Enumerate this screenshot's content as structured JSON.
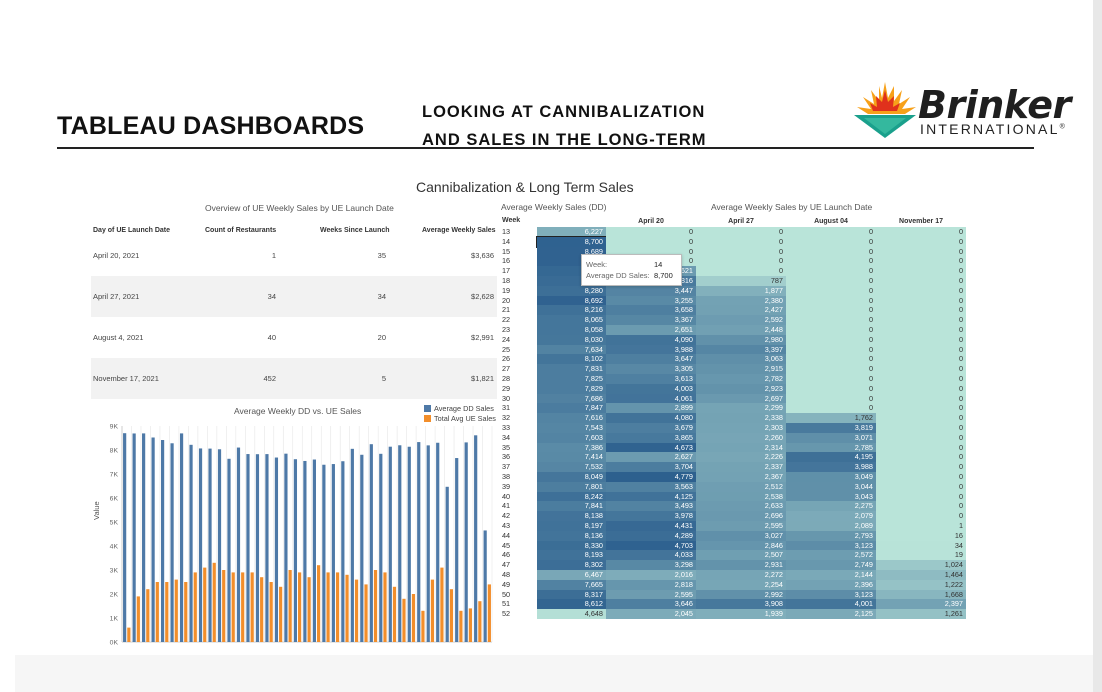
{
  "header": {
    "title": "TABLEAU DASHBOARDS",
    "subtitle_line1": "LOOKING AT CANNIBALIZATION",
    "subtitle_line2": "AND SALES IN THE LONG-TERM"
  },
  "logo": {
    "word": "Brinker",
    "sub": "INTERNATIONAL",
    "reg": "®"
  },
  "dashboard": {
    "title": "Cannibalization & Long Term Sales",
    "overview": {
      "title": "Overview of UE Weekly Sales by UE Launch Date",
      "columns": [
        "Day of UE Launch Date",
        "Count of Restaurants",
        "Weeks Since Launch",
        "Average Weekly Sales"
      ],
      "rows": [
        [
          "April 20, 2021",
          "1",
          "35",
          "$3,636"
        ],
        [
          "April 27, 2021",
          "34",
          "34",
          "$2,628"
        ],
        [
          "August 4, 2021",
          "40",
          "20",
          "$2,991"
        ],
        [
          "November 17, 2021",
          "452",
          "5",
          "$1,821"
        ]
      ]
    },
    "dd_sales": {
      "title": "Average Weekly Sales (DD)",
      "week_header": "Week",
      "weeks": [
        "13",
        "14",
        "15",
        "16",
        "17",
        "18",
        "19",
        "20",
        "21",
        "22",
        "23",
        "24",
        "25",
        "26",
        "27",
        "28",
        "29",
        "30",
        "31",
        "32",
        "33",
        "34",
        "35",
        "36",
        "37",
        "38",
        "39",
        "40",
        "41",
        "42",
        "43",
        "44",
        "45",
        "46",
        "47",
        "48",
        "49",
        "50",
        "51",
        "52"
      ],
      "values": [
        "6,227",
        "8,700",
        "8,689",
        "8,692",
        "8,521",
        "8,416",
        "8,280",
        "8,692",
        "8,216",
        "8,065",
        "8,058",
        "8,030",
        "7,634",
        "8,102",
        "7,831",
        "7,825",
        "7,829",
        "7,686",
        "7,847",
        "7,616",
        "7,543",
        "7,603",
        "7,386",
        "7,414",
        "7,532",
        "8,049",
        "7,801",
        "8,242",
        "7,841",
        "8,138",
        "8,197",
        "8,136",
        "8,330",
        "8,193",
        "8,302",
        "6,467",
        "7,665",
        "8,317",
        "8,612",
        "4,648"
      ]
    },
    "ue_sales": {
      "title": "Average Weekly Sales by UE Launch Date",
      "columns": [
        "April 20",
        "April 27",
        "August 04",
        "November 17"
      ],
      "rows": [
        [
          "0",
          "0",
          "0",
          "0"
        ],
        [
          "0",
          "0",
          "0",
          "0"
        ],
        [
          "0",
          "0",
          "0",
          "0"
        ],
        [
          "0",
          "0",
          "0",
          "0"
        ],
        [
          "2,621",
          "0",
          "0",
          "0"
        ],
        [
          "3,816",
          "787",
          "0",
          "0"
        ],
        [
          "3,447",
          "1,877",
          "0",
          "0"
        ],
        [
          "3,255",
          "2,380",
          "0",
          "0"
        ],
        [
          "3,658",
          "2,427",
          "0",
          "0"
        ],
        [
          "3,367",
          "2,592",
          "0",
          "0"
        ],
        [
          "2,651",
          "2,448",
          "0",
          "0"
        ],
        [
          "4,090",
          "2,980",
          "0",
          "0"
        ],
        [
          "3,988",
          "3,397",
          "0",
          "0"
        ],
        [
          "3,647",
          "3,063",
          "0",
          "0"
        ],
        [
          "3,305",
          "2,915",
          "0",
          "0"
        ],
        [
          "3,613",
          "2,782",
          "0",
          "0"
        ],
        [
          "4,003",
          "2,923",
          "0",
          "0"
        ],
        [
          "4,061",
          "2,697",
          "0",
          "0"
        ],
        [
          "2,899",
          "2,299",
          "0",
          "0"
        ],
        [
          "4,080",
          "2,338",
          "1,762",
          "0"
        ],
        [
          "3,679",
          "2,303",
          "3,819",
          "0"
        ],
        [
          "3,865",
          "2,260",
          "3,071",
          "0"
        ],
        [
          "4,673",
          "2,314",
          "2,785",
          "0"
        ],
        [
          "2,627",
          "2,226",
          "4,195",
          "0"
        ],
        [
          "3,704",
          "2,337",
          "3,988",
          "0"
        ],
        [
          "4,779",
          "2,367",
          "3,049",
          "0"
        ],
        [
          "3,563",
          "2,512",
          "3,044",
          "0"
        ],
        [
          "4,125",
          "2,538",
          "3,043",
          "0"
        ],
        [
          "3,493",
          "2,633",
          "2,275",
          "0"
        ],
        [
          "3,978",
          "2,696",
          "2,079",
          "0"
        ],
        [
          "4,431",
          "2,595",
          "2,089",
          "1"
        ],
        [
          "4,289",
          "3,027",
          "2,793",
          "16"
        ],
        [
          "4,703",
          "2,846",
          "3,123",
          "34"
        ],
        [
          "4,033",
          "2,507",
          "2,572",
          "19"
        ],
        [
          "3,298",
          "2,931",
          "2,749",
          "1,024"
        ],
        [
          "2,016",
          "2,272",
          "2,144",
          "1,464"
        ],
        [
          "2,818",
          "2,254",
          "2,396",
          "1,222"
        ],
        [
          "2,595",
          "2,992",
          "3,123",
          "1,668"
        ],
        [
          "3,646",
          "3,908",
          "4,001",
          "2,397"
        ],
        [
          "2,045",
          "1,939",
          "2,125",
          "1,261"
        ]
      ]
    },
    "tooltip": {
      "week_label": "Week:",
      "week_value": "14",
      "sales_label": "Average DD Sales:",
      "sales_value": "8,700"
    }
  },
  "chart_data": {
    "type": "bar",
    "title": "Average Weekly DD vs. UE Sales",
    "ylabel": "Value",
    "ylim": [
      0,
      9000
    ],
    "y_ticks": [
      "0K",
      "1K",
      "2K",
      "3K",
      "4K",
      "5K",
      "6K",
      "7K",
      "8K",
      "9K"
    ],
    "legend_position": "top-right",
    "series": [
      {
        "name": "Average DD Sales",
        "color": "#4e79a7",
        "values": [
          8700,
          8689,
          8692,
          8521,
          8416,
          8280,
          8692,
          8216,
          8065,
          8058,
          8030,
          7634,
          8102,
          7831,
          7825,
          7829,
          7686,
          7847,
          7616,
          7543,
          7603,
          7386,
          7414,
          7532,
          8049,
          7801,
          8242,
          7841,
          8138,
          8197,
          8136,
          8330,
          8193,
          8302,
          6467,
          7665,
          8317,
          8612,
          4648
        ]
      },
      {
        "name": "Total Avg UE Sales",
        "color": "#f28e2b",
        "values": [
          600,
          1900,
          2200,
          2500,
          2500,
          2600,
          2500,
          2900,
          3100,
          3300,
          3000,
          2900,
          2900,
          2900,
          2700,
          2500,
          2300,
          3000,
          2900,
          2700,
          3200,
          2900,
          2900,
          2800,
          2600,
          2400,
          3000,
          2900,
          2300,
          1800,
          2000,
          1300,
          2600,
          3100,
          2200,
          1300,
          1400,
          1700,
          2400
        ]
      }
    ]
  }
}
